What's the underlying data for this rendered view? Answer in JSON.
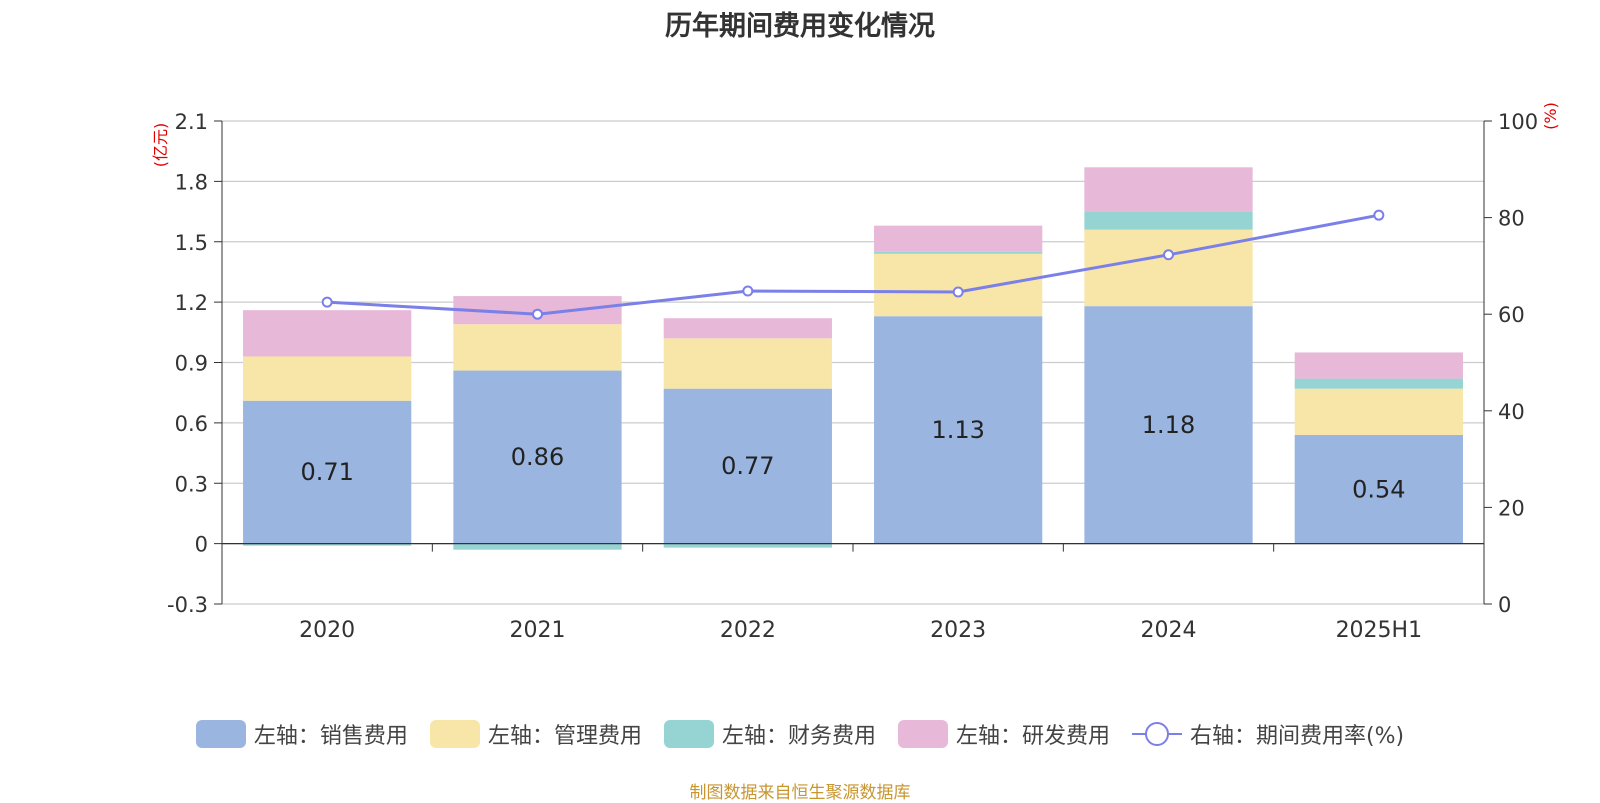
{
  "title": "历年期间费用变化情况",
  "source": "制图数据来自恒生聚源数据库",
  "legend": [
    {
      "label": "左轴：销售费用",
      "color": "#9ab6e0"
    },
    {
      "label": "左轴：管理费用",
      "color": "#f8e6a8"
    },
    {
      "label": "左轴：财务费用",
      "color": "#96d4d4"
    },
    {
      "label": "左轴：研发费用",
      "color": "#e8b8d8"
    },
    {
      "label": "右轴：期间费用率(%)",
      "color": "#7b7fe8"
    }
  ],
  "chart_data": {
    "type": "bar",
    "stacked": true,
    "title": "历年期间费用变化情况",
    "categories": [
      "2020",
      "2021",
      "2022",
      "2023",
      "2024",
      "2025H1"
    ],
    "y_left": {
      "label": "(亿元)",
      "ylim": [
        -0.3,
        2.1
      ],
      "ticks": [
        -0.3,
        0,
        0.3,
        0.6,
        0.9,
        1.2,
        1.5,
        1.8,
        2.1
      ]
    },
    "y_right": {
      "label": "(%)",
      "ylim": [
        0,
        100
      ],
      "ticks": [
        0,
        20,
        40,
        60,
        80,
        100
      ]
    },
    "series": [
      {
        "name": "左轴：销售费用",
        "axis": "left",
        "color": "#9ab6e0",
        "values": [
          0.71,
          0.86,
          0.77,
          1.13,
          1.18,
          0.54
        ],
        "show_labels": true
      },
      {
        "name": "左轴：管理费用",
        "axis": "left",
        "color": "#f8e6a8",
        "values": [
          0.22,
          0.23,
          0.25,
          0.31,
          0.38,
          0.23
        ]
      },
      {
        "name": "左轴：财务费用",
        "axis": "left",
        "color": "#96d4d4",
        "values": [
          -0.01,
          -0.03,
          -0.02,
          0.01,
          0.09,
          0.05
        ]
      },
      {
        "name": "左轴：研发费用",
        "axis": "left",
        "color": "#e8b8d8",
        "values": [
          0.23,
          0.14,
          0.1,
          0.13,
          0.22,
          0.13
        ]
      },
      {
        "name": "右轴：期间费用率(%)",
        "axis": "right",
        "type": "line",
        "color": "#7b7fe8",
        "values": [
          62.5,
          60,
          64.8,
          64.6,
          72.3,
          80.5
        ]
      }
    ],
    "grid": true
  }
}
